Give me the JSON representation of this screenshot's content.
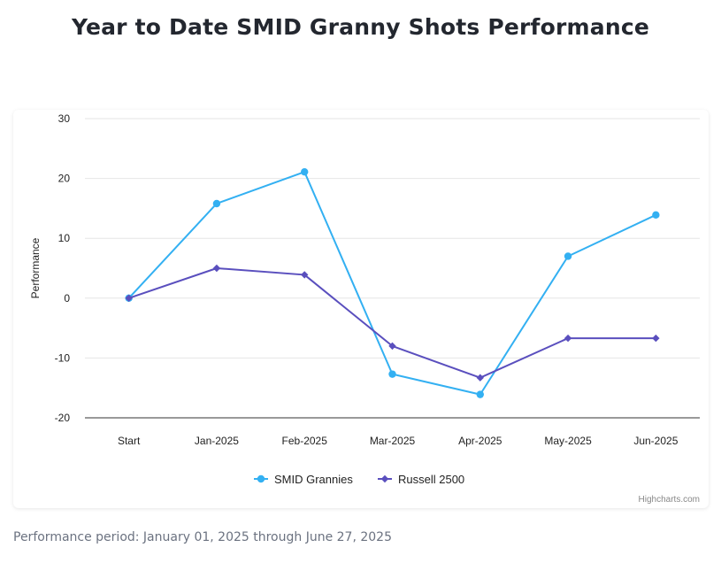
{
  "title": "Year to Date SMID Granny Shots Performance",
  "footnote": "Performance period: January 01, 2025 through June 27, 2025",
  "credit": "Highcharts.com",
  "chart_data": {
    "type": "line",
    "title": "Year to Date SMID Granny Shots Performance",
    "xlabel": "",
    "ylabel": "Performance",
    "categories": [
      "Start",
      "Jan-2025",
      "Feb-2025",
      "Mar-2025",
      "Apr-2025",
      "May-2025",
      "Jun-2025"
    ],
    "ylim": [
      -20,
      30
    ],
    "yticks": [
      30,
      20,
      10,
      0,
      -10,
      -20
    ],
    "ytick_labels": [
      "30",
      "20",
      "10",
      "0",
      "-10",
      "-20"
    ],
    "grid": true,
    "legend_position": "bottom-center",
    "series": [
      {
        "name": "SMID Grannies",
        "color": "#33b0f2",
        "marker": "circle",
        "values": [
          0,
          15.8,
          21.1,
          -12.7,
          -16.1,
          7.0,
          13.9
        ]
      },
      {
        "name": "Russell 2500",
        "color": "#5a4fbe",
        "marker": "diamond",
        "values": [
          0,
          5.0,
          3.9,
          -8.0,
          -13.3,
          -6.7,
          -6.7
        ]
      }
    ]
  }
}
